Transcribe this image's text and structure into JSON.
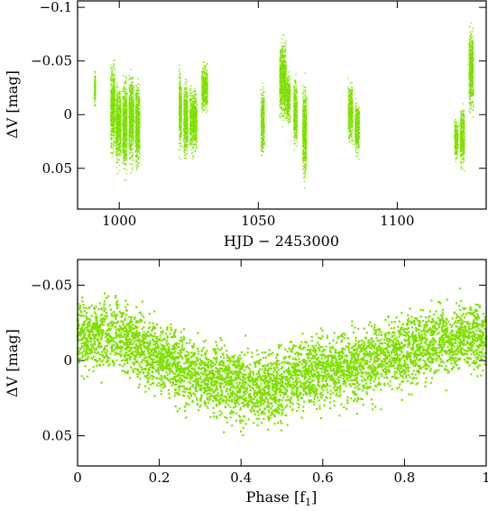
{
  "chart_data": [
    {
      "type": "scatter",
      "title": "",
      "xlabel": "HJD − 2453000",
      "ylabel": "ΔV [mag]",
      "xlim": [
        985,
        1132
      ],
      "ylim": [
        0.088,
        -0.106
      ],
      "y_inverted": true,
      "grid": false,
      "marker_color": "#7fe000",
      "x_ticks": [
        1000,
        1050,
        1100
      ],
      "x_tick_labels": [
        "1000",
        "1050",
        "1100"
      ],
      "y_ticks": [
        -0.1,
        -0.05,
        0,
        0.05
      ],
      "y_tick_labels": [
        "−0.1",
        "−0.05",
        "0",
        "0.05"
      ],
      "observing_runs": [
        {
          "x": [
            990.8,
            991.3
          ],
          "y": [
            -0.05,
            0.0
          ]
        },
        {
          "x": [
            996.7,
            998.2
          ],
          "y": [
            0.055,
            -0.07
          ]
        },
        {
          "x": [
            998.6,
            1000.4
          ],
          "y": [
            0.065,
            -0.045
          ]
        },
        {
          "x": [
            1001.0,
            1002.6
          ],
          "y": [
            0.075,
            -0.055
          ]
        },
        {
          "x": [
            1003.3,
            1005.0
          ],
          "y": [
            0.065,
            -0.06
          ]
        },
        {
          "x": [
            1005.6,
            1007.2
          ],
          "y": [
            0.07,
            -0.05
          ]
        },
        {
          "x": [
            1021.3,
            1022.2
          ],
          "y": [
            0.05,
            -0.06
          ]
        },
        {
          "x": [
            1023.0,
            1024.5
          ],
          "y": [
            0.06,
            -0.05
          ]
        },
        {
          "x": [
            1025.2,
            1027.8
          ],
          "y": [
            0.05,
            -0.04
          ]
        },
        {
          "x": [
            1029.5,
            1031.6
          ],
          "y": [
            0.01,
            -0.06
          ]
        },
        {
          "x": [
            1050.8,
            1052.0
          ],
          "y": [
            0.055,
            -0.04
          ]
        },
        {
          "x": [
            1057.5,
            1059.8
          ],
          "y": [
            0.025,
            -0.09
          ]
        },
        {
          "x": [
            1060.0,
            1061.3
          ],
          "y": [
            0.02,
            -0.05
          ]
        },
        {
          "x": [
            1062.6,
            1063.8
          ],
          "y": [
            0.045,
            -0.05
          ]
        },
        {
          "x": [
            1065.8,
            1067.2
          ],
          "y": [
            0.085,
            -0.05
          ]
        },
        {
          "x": [
            1082.2,
            1083.8
          ],
          "y": [
            0.04,
            -0.045
          ]
        },
        {
          "x": [
            1084.6,
            1086.2
          ],
          "y": [
            0.05,
            -0.025
          ]
        },
        {
          "x": [
            1120.4,
            1121.7
          ],
          "y": [
            0.05,
            -0.005
          ]
        },
        {
          "x": [
            1122.5,
            1124.0
          ],
          "y": [
            0.06,
            -0.02
          ]
        },
        {
          "x": [
            1125.6,
            1127.2
          ],
          "y": [
            0.02,
            -0.1
          ]
        }
      ]
    },
    {
      "type": "scatter",
      "title": "",
      "xlabel": "Phase [f1]",
      "xlabel_main": "Phase [f",
      "xlabel_sub": "1",
      "xlabel_close": "]",
      "ylabel": "ΔV [mag]",
      "xlim": [
        0,
        1
      ],
      "ylim": [
        0.07,
        -0.067
      ],
      "y_inverted": true,
      "grid": false,
      "marker_color": "#7fe000",
      "x_ticks": [
        0,
        0.2,
        0.4,
        0.6,
        0.8,
        1
      ],
      "x_tick_labels": [
        "0",
        "0.2",
        "0.4",
        "0.6",
        "0.8",
        "1"
      ],
      "y_ticks": [
        -0.05,
        0,
        0.05
      ],
      "y_tick_labels": [
        "−0.05",
        "0",
        "0.05"
      ],
      "mean_curve": {
        "phase": [
          0.0,
          0.05,
          0.1,
          0.15,
          0.2,
          0.25,
          0.3,
          0.35,
          0.4,
          0.45,
          0.5,
          0.55,
          0.6,
          0.65,
          0.7,
          0.75,
          0.8,
          0.85,
          0.9,
          0.95,
          1.0
        ],
        "dv": [
          -0.015,
          -0.018,
          -0.016,
          -0.01,
          -0.002,
          0.005,
          0.01,
          0.014,
          0.018,
          0.02,
          0.015,
          0.01,
          0.008,
          0.006,
          0.003,
          -0.002,
          -0.006,
          -0.01,
          -0.013,
          -0.015,
          -0.015
        ]
      }
    }
  ]
}
